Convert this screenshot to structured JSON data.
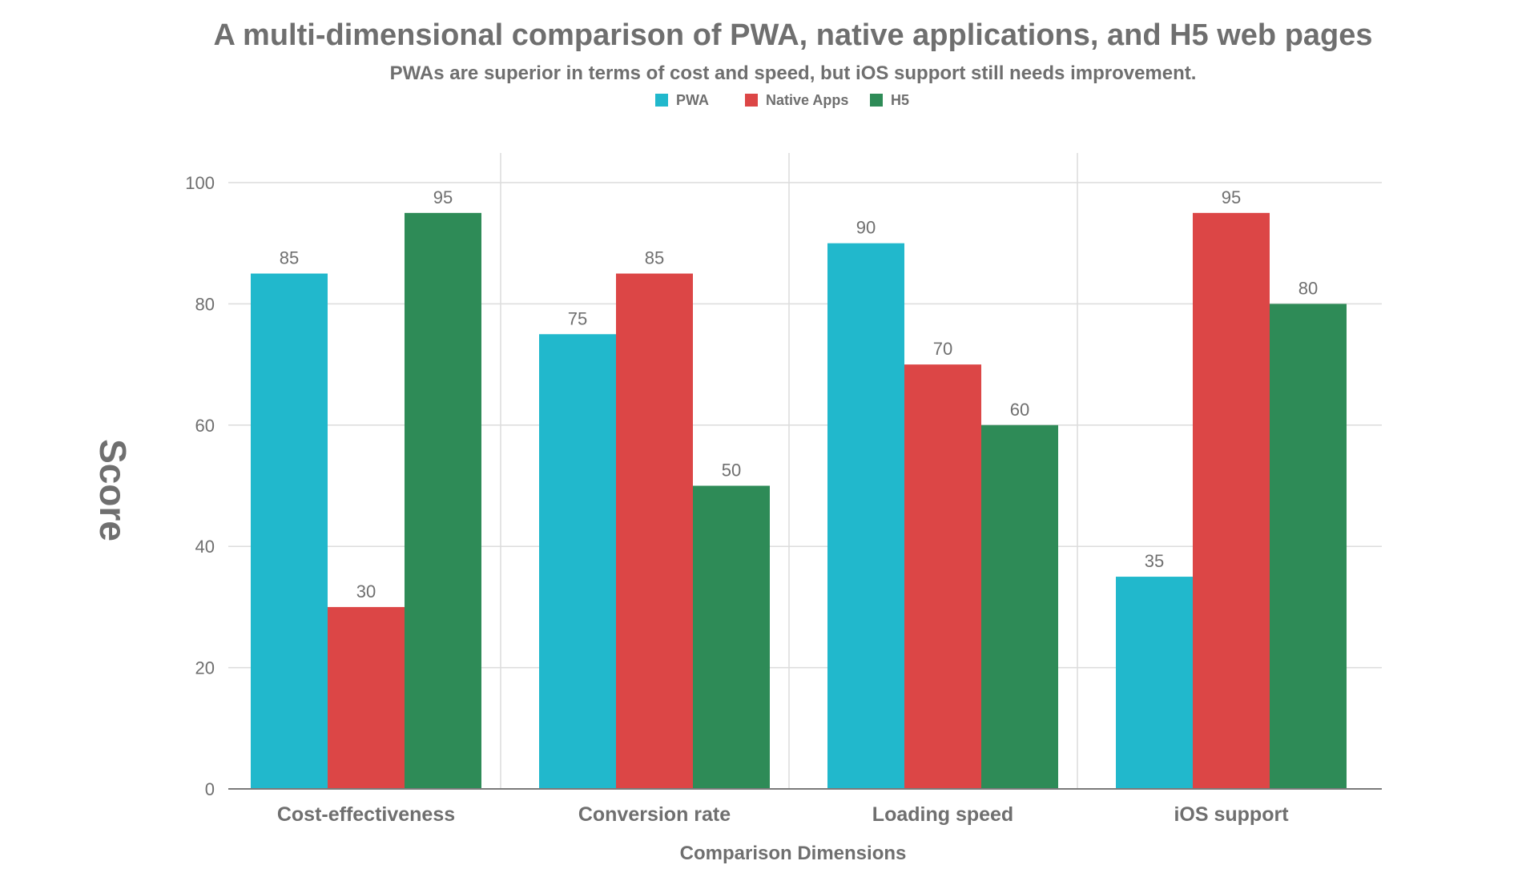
{
  "chart_data": {
    "type": "bar",
    "title": "A multi-dimensional comparison of PWA, native applications, and H5 web pages",
    "subtitle": "PWAs are superior in terms of cost and speed, but iOS support still needs improvement.",
    "xlabel": "Comparison Dimensions",
    "ylabel": "Score",
    "categories": [
      "Cost-effectiveness",
      "Conversion rate",
      "Loading speed",
      "iOS support"
    ],
    "ylim": [
      0,
      100
    ],
    "yticks": [
      0,
      20,
      40,
      60,
      80,
      100
    ],
    "grid": true,
    "legend_position": "top-center",
    "series": [
      {
        "name": "PWA",
        "color": "#21b8cc",
        "values": [
          85,
          75,
          90,
          35
        ]
      },
      {
        "name": "Native Apps",
        "color": "#dc4646",
        "values": [
          30,
          85,
          70,
          95
        ]
      },
      {
        "name": "H5",
        "color": "#2e8b57",
        "values": [
          95,
          50,
          60,
          80
        ]
      }
    ]
  }
}
